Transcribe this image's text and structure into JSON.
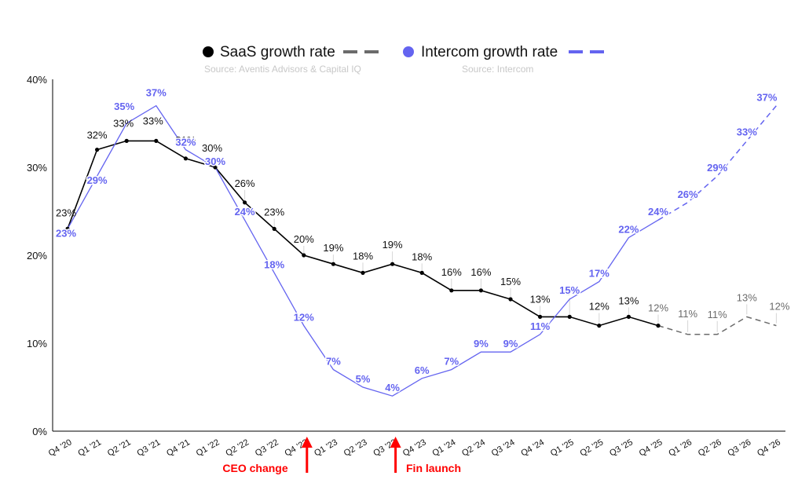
{
  "chart_data": {
    "type": "line",
    "categories": [
      "Q4 '20",
      "Q1 '21",
      "Q2 '21",
      "Q3 '21",
      "Q4 '21",
      "Q1 '22",
      "Q2 '22",
      "Q3 '22",
      "Q4 '22",
      "Q1 '23",
      "Q2 '23",
      "Q3 '23",
      "Q4 '23",
      "Q1 '24",
      "Q2 '24",
      "Q3 '24",
      "Q4 '24",
      "Q1 '25",
      "Q2 '25",
      "Q3 '25",
      "Q4 '25",
      "Q1 '26",
      "Q2 '26",
      "Q3 '26",
      "Q4 '26"
    ],
    "ylim": [
      0,
      40
    ],
    "yticks": [
      0,
      10,
      20,
      30,
      40
    ],
    "ytick_labels": [
      "0%",
      "10%",
      "20%",
      "30%",
      "40%"
    ],
    "series": [
      {
        "name": "SaaS growth rate",
        "source": "Source: Aventis Advisors & Capital IQ",
        "color": "#000000",
        "forecast_color": "#6b6b6b",
        "values": [
          23,
          32,
          33,
          33,
          31,
          30,
          26,
          23,
          20,
          19,
          18,
          19,
          18,
          16,
          16,
          15,
          13,
          13,
          12,
          13,
          12,
          11,
          11,
          13,
          12
        ],
        "labels": [
          "23%",
          "32%",
          "33%",
          "33%",
          "31%",
          "30%",
          "26%",
          "23%",
          "20%",
          "19%",
          "18%",
          "19%",
          "18%",
          "16%",
          "16%",
          "15%",
          "13%",
          "13%",
          "12%",
          "13%",
          "12%",
          "11%",
          "11%",
          "13%",
          "12%"
        ],
        "forecast_from_index": 20
      },
      {
        "name": "Intercom growth rate",
        "source": "Source: Intercom",
        "color": "#6464f0",
        "forecast_color": "#6464f0",
        "values": [
          23,
          29,
          35,
          37,
          32,
          30,
          24,
          18,
          12,
          7,
          5,
          4,
          6,
          7,
          9,
          9,
          11,
          15,
          17,
          22,
          24,
          26,
          29,
          33,
          37
        ],
        "labels": [
          "23%",
          "29%",
          "35%",
          "37%",
          "32%",
          "30%",
          "24%",
          "18%",
          "12%",
          "7%",
          "5%",
          "4%",
          "6%",
          "7%",
          "9%",
          "9%",
          "11%",
          "15%",
          "17%",
          "22%",
          "24%",
          "26%",
          "29%",
          "33%",
          "37%"
        ],
        "forecast_from_index": 20
      }
    ],
    "annotations": [
      {
        "text": "CEO change",
        "category_index": 8,
        "color": "#ff0000"
      },
      {
        "text": "Fin launch",
        "category_index": 11,
        "color": "#ff0000"
      }
    ],
    "legend_position": "top-center",
    "grid": false
  }
}
